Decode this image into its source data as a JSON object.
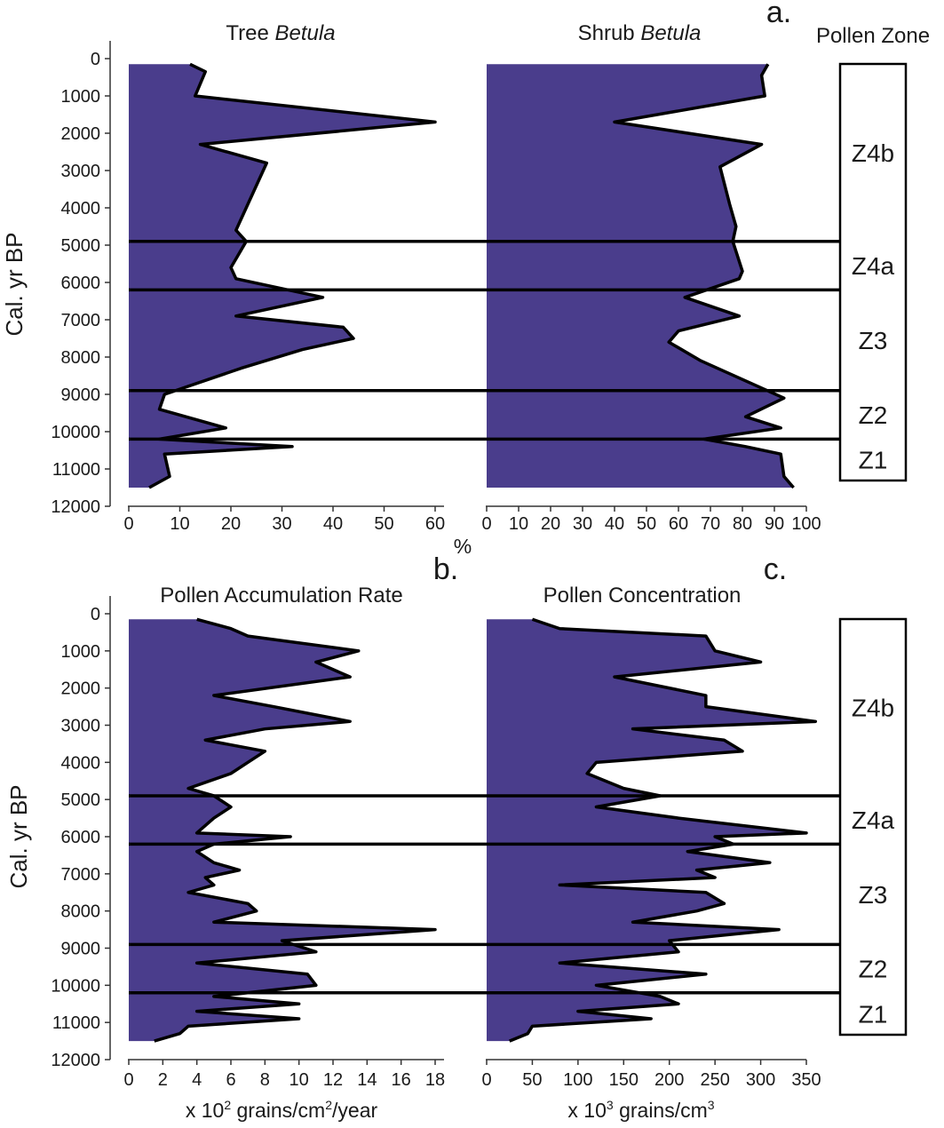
{
  "colors": {
    "fill": "#4a3d8c",
    "line": "#000000",
    "text": "#1a1a1a"
  },
  "chart_data": [
    {
      "panel_label": "",
      "type": "area",
      "title": "Tree Betula",
      "title_parts": [
        "Tree ",
        "Betula"
      ],
      "xlabel": "%",
      "ylabel": "Cal. yr BP",
      "xlim": [
        0,
        60
      ],
      "x_ticks": [
        "0",
        "10",
        "20",
        "30",
        "40",
        "50",
        "60"
      ],
      "ylim": [
        0,
        12000
      ],
      "y_ticks": [
        "0",
        "1000",
        "2000",
        "3000",
        "4000",
        "5000",
        "6000",
        "7000",
        "8000",
        "9000",
        "10000",
        "11000",
        "12000"
      ],
      "y_reversed": true,
      "series": [
        {
          "age": [
            150,
            350,
            1000,
            1700,
            2300,
            2800,
            4000,
            4600,
            4900,
            5600,
            5900,
            6400,
            6900,
            7200,
            7500,
            7800,
            8300,
            9000,
            9400,
            9900,
            10200,
            10400,
            10600,
            11200,
            11500
          ],
          "value": [
            12,
            15,
            13,
            60,
            14,
            27,
            23,
            21,
            23,
            20,
            21,
            38,
            21,
            42,
            44,
            34,
            22,
            7,
            6,
            19,
            6,
            32,
            7,
            8,
            4
          ]
        }
      ]
    },
    {
      "panel_label": "a.",
      "type": "area",
      "title": "Shrub Betula",
      "title_parts": [
        "Shrub ",
        "Betula"
      ],
      "xlabel": "",
      "xlim": [
        0,
        100
      ],
      "x_ticks": [
        "0",
        "10",
        "20",
        "30",
        "40",
        "50",
        "60",
        "70",
        "80",
        "90",
        "100"
      ],
      "ylim": [
        0,
        12000
      ],
      "y_reversed": true,
      "series": [
        {
          "age": [
            150,
            450,
            1000,
            1700,
            2300,
            2900,
            3900,
            4500,
            4900,
            5700,
            5900,
            6400,
            6900,
            7300,
            7600,
            8100,
            9100,
            9600,
            9900,
            10200,
            10400,
            10600,
            11200,
            11500
          ],
          "value": [
            88,
            86,
            87,
            40,
            86,
            73,
            76,
            78,
            77,
            80,
            79,
            62,
            79,
            60,
            57,
            67,
            93,
            81,
            92,
            68,
            81,
            92,
            93,
            96
          ]
        }
      ]
    },
    {
      "panel_label": "b.",
      "type": "area",
      "title": "Pollen Accumulation Rate",
      "xlabel_parts": [
        "x 10",
        "2",
        " grains/cm",
        "2",
        "/year"
      ],
      "ylabel": "Cal. yr BP",
      "xlim": [
        0,
        18
      ],
      "x_ticks": [
        "0",
        "2",
        "4",
        "6",
        "8",
        "10",
        "12",
        "14",
        "16",
        "18"
      ],
      "ylim": [
        0,
        12000
      ],
      "y_ticks": [
        "0",
        "1000",
        "2000",
        "3000",
        "4000",
        "5000",
        "6000",
        "7000",
        "8000",
        "9000",
        "10000",
        "11000",
        "12000"
      ],
      "y_reversed": true,
      "series": [
        {
          "age": [
            150,
            400,
            600,
            1000,
            1300,
            1700,
            2200,
            2500,
            2900,
            3100,
            3400,
            3700,
            4000,
            4300,
            4700,
            4900,
            5200,
            5500,
            5900,
            6000,
            6200,
            6400,
            6700,
            6900,
            7100,
            7300,
            7500,
            7800,
            8000,
            8300,
            8500,
            8800,
            9100,
            9400,
            9700,
            10000,
            10300,
            10500,
            10700,
            10900,
            11100,
            11300,
            11500
          ],
          "value": [
            4,
            6,
            7,
            13.5,
            11,
            13,
            5,
            8.5,
            13,
            8,
            4.5,
            8,
            7,
            6,
            3.5,
            5,
            6,
            5,
            4,
            9.5,
            5,
            4,
            5,
            6.5,
            4.5,
            5,
            3.5,
            7,
            7.5,
            5,
            18,
            9,
            11,
            4,
            10.5,
            11,
            5,
            10,
            4,
            10,
            3.5,
            3,
            1.5
          ]
        }
      ]
    },
    {
      "panel_label": "c.",
      "type": "area",
      "title": "Pollen Concentration",
      "xlabel_parts": [
        "x 10",
        "3",
        " grains/cm",
        "3"
      ],
      "xlim": [
        0,
        350
      ],
      "x_ticks": [
        "0",
        "50",
        "100",
        "150",
        "200",
        "250",
        "300",
        "350"
      ],
      "ylim": [
        0,
        12000
      ],
      "y_reversed": true,
      "series": [
        {
          "age": [
            150,
            400,
            600,
            1000,
            1300,
            1700,
            2200,
            2500,
            2900,
            3100,
            3400,
            3700,
            4000,
            4300,
            4700,
            4900,
            5200,
            5500,
            5900,
            6000,
            6200,
            6400,
            6700,
            6900,
            7100,
            7300,
            7500,
            7800,
            8000,
            8300,
            8500,
            8800,
            9100,
            9400,
            9700,
            10000,
            10300,
            10500,
            10700,
            10900,
            11100,
            11300,
            11500
          ],
          "value": [
            50,
            80,
            240,
            250,
            300,
            140,
            240,
            240,
            360,
            160,
            260,
            280,
            120,
            110,
            150,
            190,
            120,
            210,
            350,
            250,
            270,
            220,
            310,
            230,
            250,
            80,
            240,
            260,
            230,
            160,
            320,
            200,
            210,
            80,
            240,
            120,
            190,
            210,
            100,
            180,
            50,
            45,
            25
          ]
        }
      ]
    }
  ],
  "zones": {
    "title": "Pollen Zone",
    "boundaries": [
      4900,
      6200,
      8900,
      10200
    ],
    "labels": [
      {
        "name": "Z4b",
        "from": 150,
        "to": 4900
      },
      {
        "name": "Z4a",
        "from": 4900,
        "to": 6200
      },
      {
        "name": "Z3",
        "from": 6200,
        "to": 8900
      },
      {
        "name": "Z2",
        "from": 8900,
        "to": 10200
      },
      {
        "name": "Z1",
        "from": 10200,
        "to": 11500
      }
    ]
  }
}
